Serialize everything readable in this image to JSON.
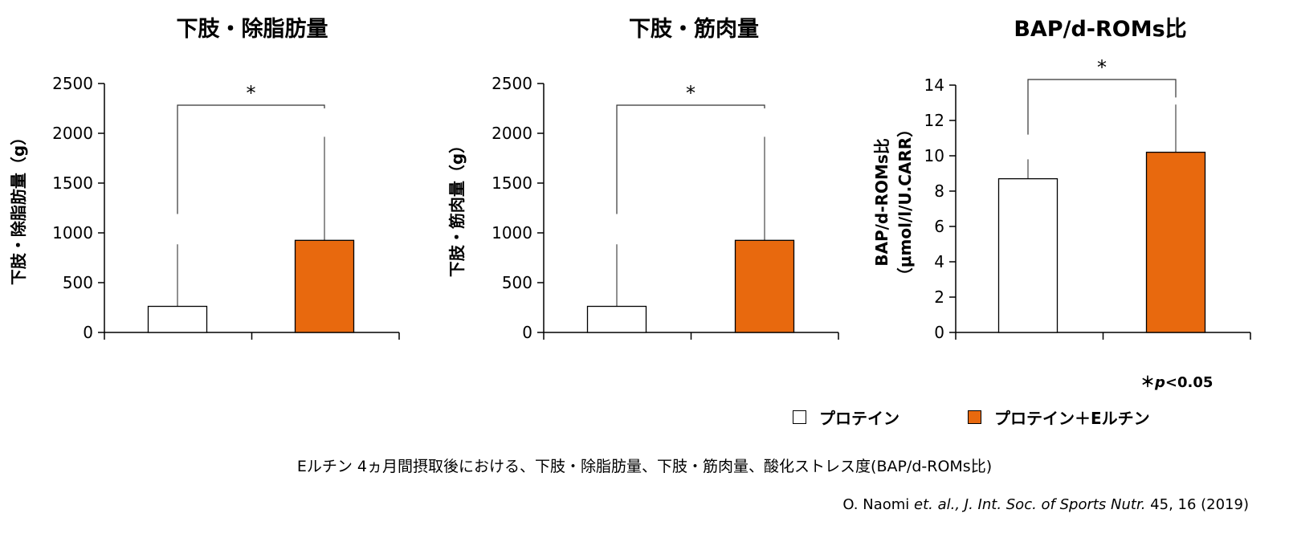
{
  "chart_data": [
    {
      "type": "bar",
      "title": "下肢・除脂肪量",
      "ylabel": "下肢・除脂肪量（g）",
      "categories": [
        "プロテイン",
        "プロテイン＋Eルチン"
      ],
      "values": [
        262,
        925
      ],
      "error_upper": [
        885,
        1965
      ],
      "ylim": [
        0,
        2500
      ],
      "yticks": [
        0,
        500,
        1000,
        1500,
        2000,
        2500
      ],
      "significance": "*",
      "grid": false
    },
    {
      "type": "bar",
      "title": "下肢・筋肉量",
      "ylabel": "下肢・筋肉量（g）",
      "categories": [
        "プロテイン",
        "プロテイン＋Eルチン"
      ],
      "values": [
        262,
        925
      ],
      "error_upper": [
        885,
        1965
      ],
      "ylim": [
        0,
        2500
      ],
      "yticks": [
        0,
        500,
        1000,
        1500,
        2000,
        2500
      ],
      "significance": "*",
      "grid": false
    },
    {
      "type": "bar",
      "title": "BAP/d-ROMs比",
      "ylabel": "BAP/d-ROMs比",
      "ylabel2": "（μmol/l/U.CARR）",
      "categories": [
        "プロテイン",
        "プロテイン＋Eルチン"
      ],
      "values": [
        8.7,
        10.2
      ],
      "error_upper": [
        9.8,
        12.9
      ],
      "ylim": [
        0,
        14
      ],
      "yticks": [
        0,
        2,
        4,
        6,
        8,
        10,
        12,
        14
      ],
      "significance": "*",
      "grid": false
    }
  ],
  "colors": {
    "control": "#ffffff",
    "treatment": "#e8690e",
    "stroke": "#000000"
  },
  "legend": [
    {
      "label": "プロテイン",
      "color": "#ffffff"
    },
    {
      "label": "プロテイン＋Eルチン",
      "color": "#e8690e"
    }
  ],
  "legend_position": "bottom-right",
  "pvalue_note": {
    "prefix": "＊",
    "p": "p",
    "rest": "<0.05"
  },
  "caption": "Eルチン 4ヵ月間摂取後における、下肢・除脂肪量、下肢・筋肉量、酸化ストレス度(BAP/d-ROMs比)",
  "citation": {
    "author": "O. Naomi ",
    "journal": "et. al., J. Int. Soc. of Sports Nutr.",
    "volume": " 45, 16 (2019)"
  }
}
